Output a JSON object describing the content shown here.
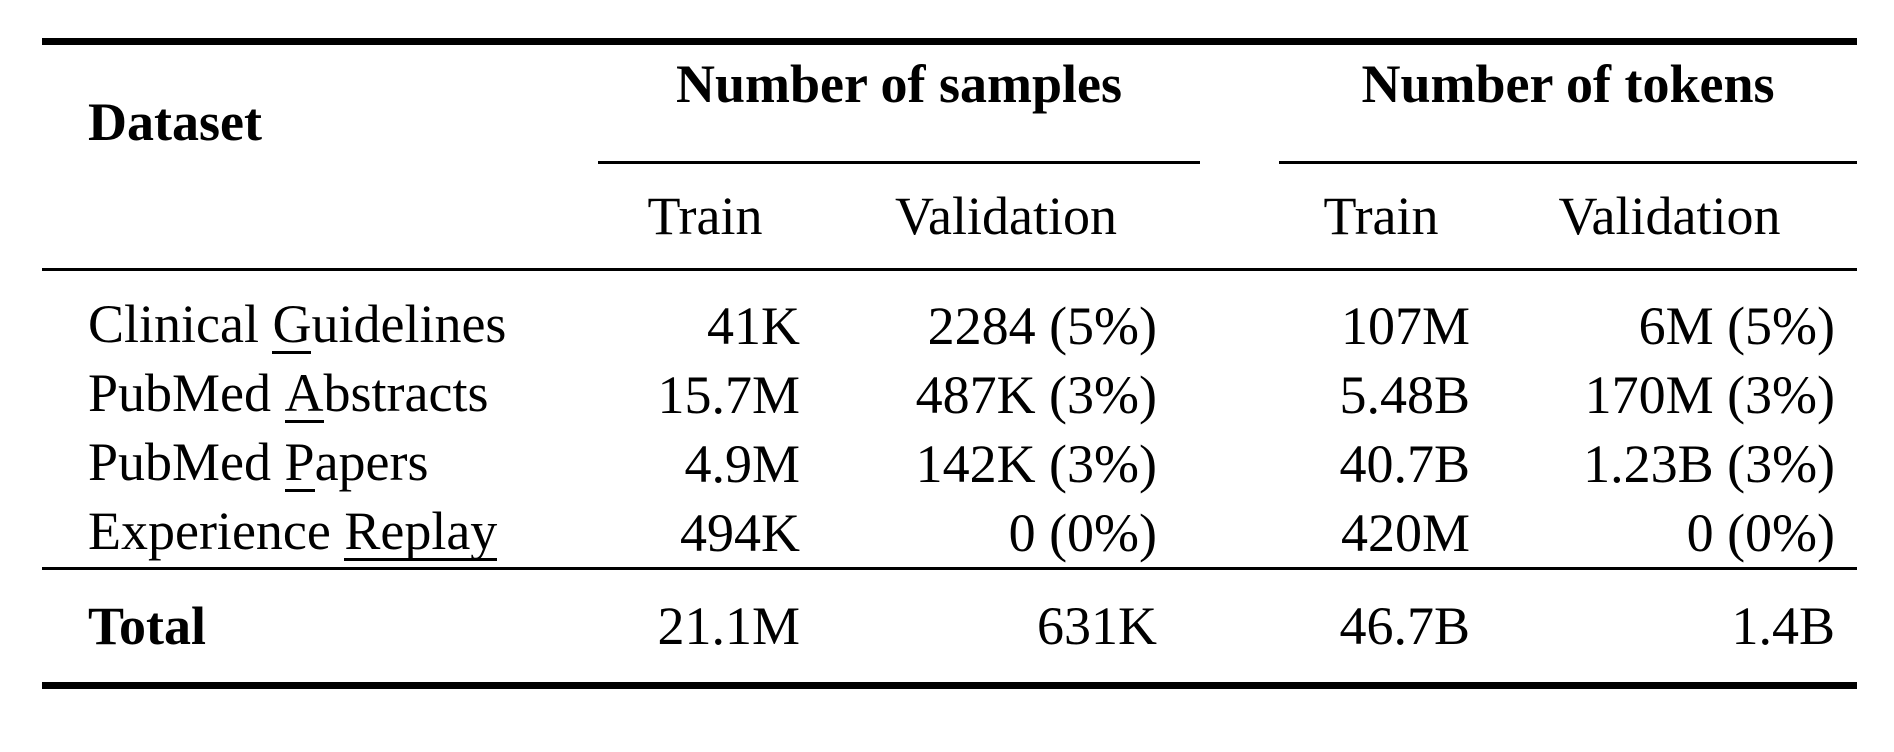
{
  "colors": {
    "background": "#ffffff",
    "text": "#000000",
    "rule": "#000000"
  },
  "table": {
    "header": {
      "dataset": "Dataset",
      "groups": [
        {
          "label": "Number of samples"
        },
        {
          "label": "Number of tokens"
        }
      ],
      "subcolumns": [
        "Train",
        "Validation",
        "Train",
        "Validation"
      ]
    },
    "rows": [
      {
        "dataset": {
          "pre": "Clinical ",
          "u": "G",
          "post": "uidelines"
        },
        "samples_train": "41K",
        "samples_validation": "2284 (5%)",
        "tokens_train": "107M",
        "tokens_validation": "6M (5%)"
      },
      {
        "dataset": {
          "pre": "PubMed ",
          "u": "A",
          "post": "bstracts"
        },
        "samples_train": "15.7M",
        "samples_validation": "487K (3%)",
        "tokens_train": "5.48B",
        "tokens_validation": "170M (3%)"
      },
      {
        "dataset": {
          "pre": "PubMed ",
          "u": "P",
          "post": "apers"
        },
        "samples_train": "4.9M",
        "samples_validation": "142K (3%)",
        "tokens_train": "40.7B",
        "tokens_validation": "1.23B (3%)"
      },
      {
        "dataset": {
          "pre": "Experience ",
          "u": "Replay",
          "post": ""
        },
        "samples_train": "494K",
        "samples_validation": "0 (0%)",
        "tokens_train": "420M",
        "tokens_validation": "0 (0%)"
      }
    ],
    "total": {
      "label": "Total",
      "samples_train": "21.1M",
      "samples_validation": "631K",
      "tokens_train": "46.7B",
      "tokens_validation": "1.4B"
    }
  }
}
